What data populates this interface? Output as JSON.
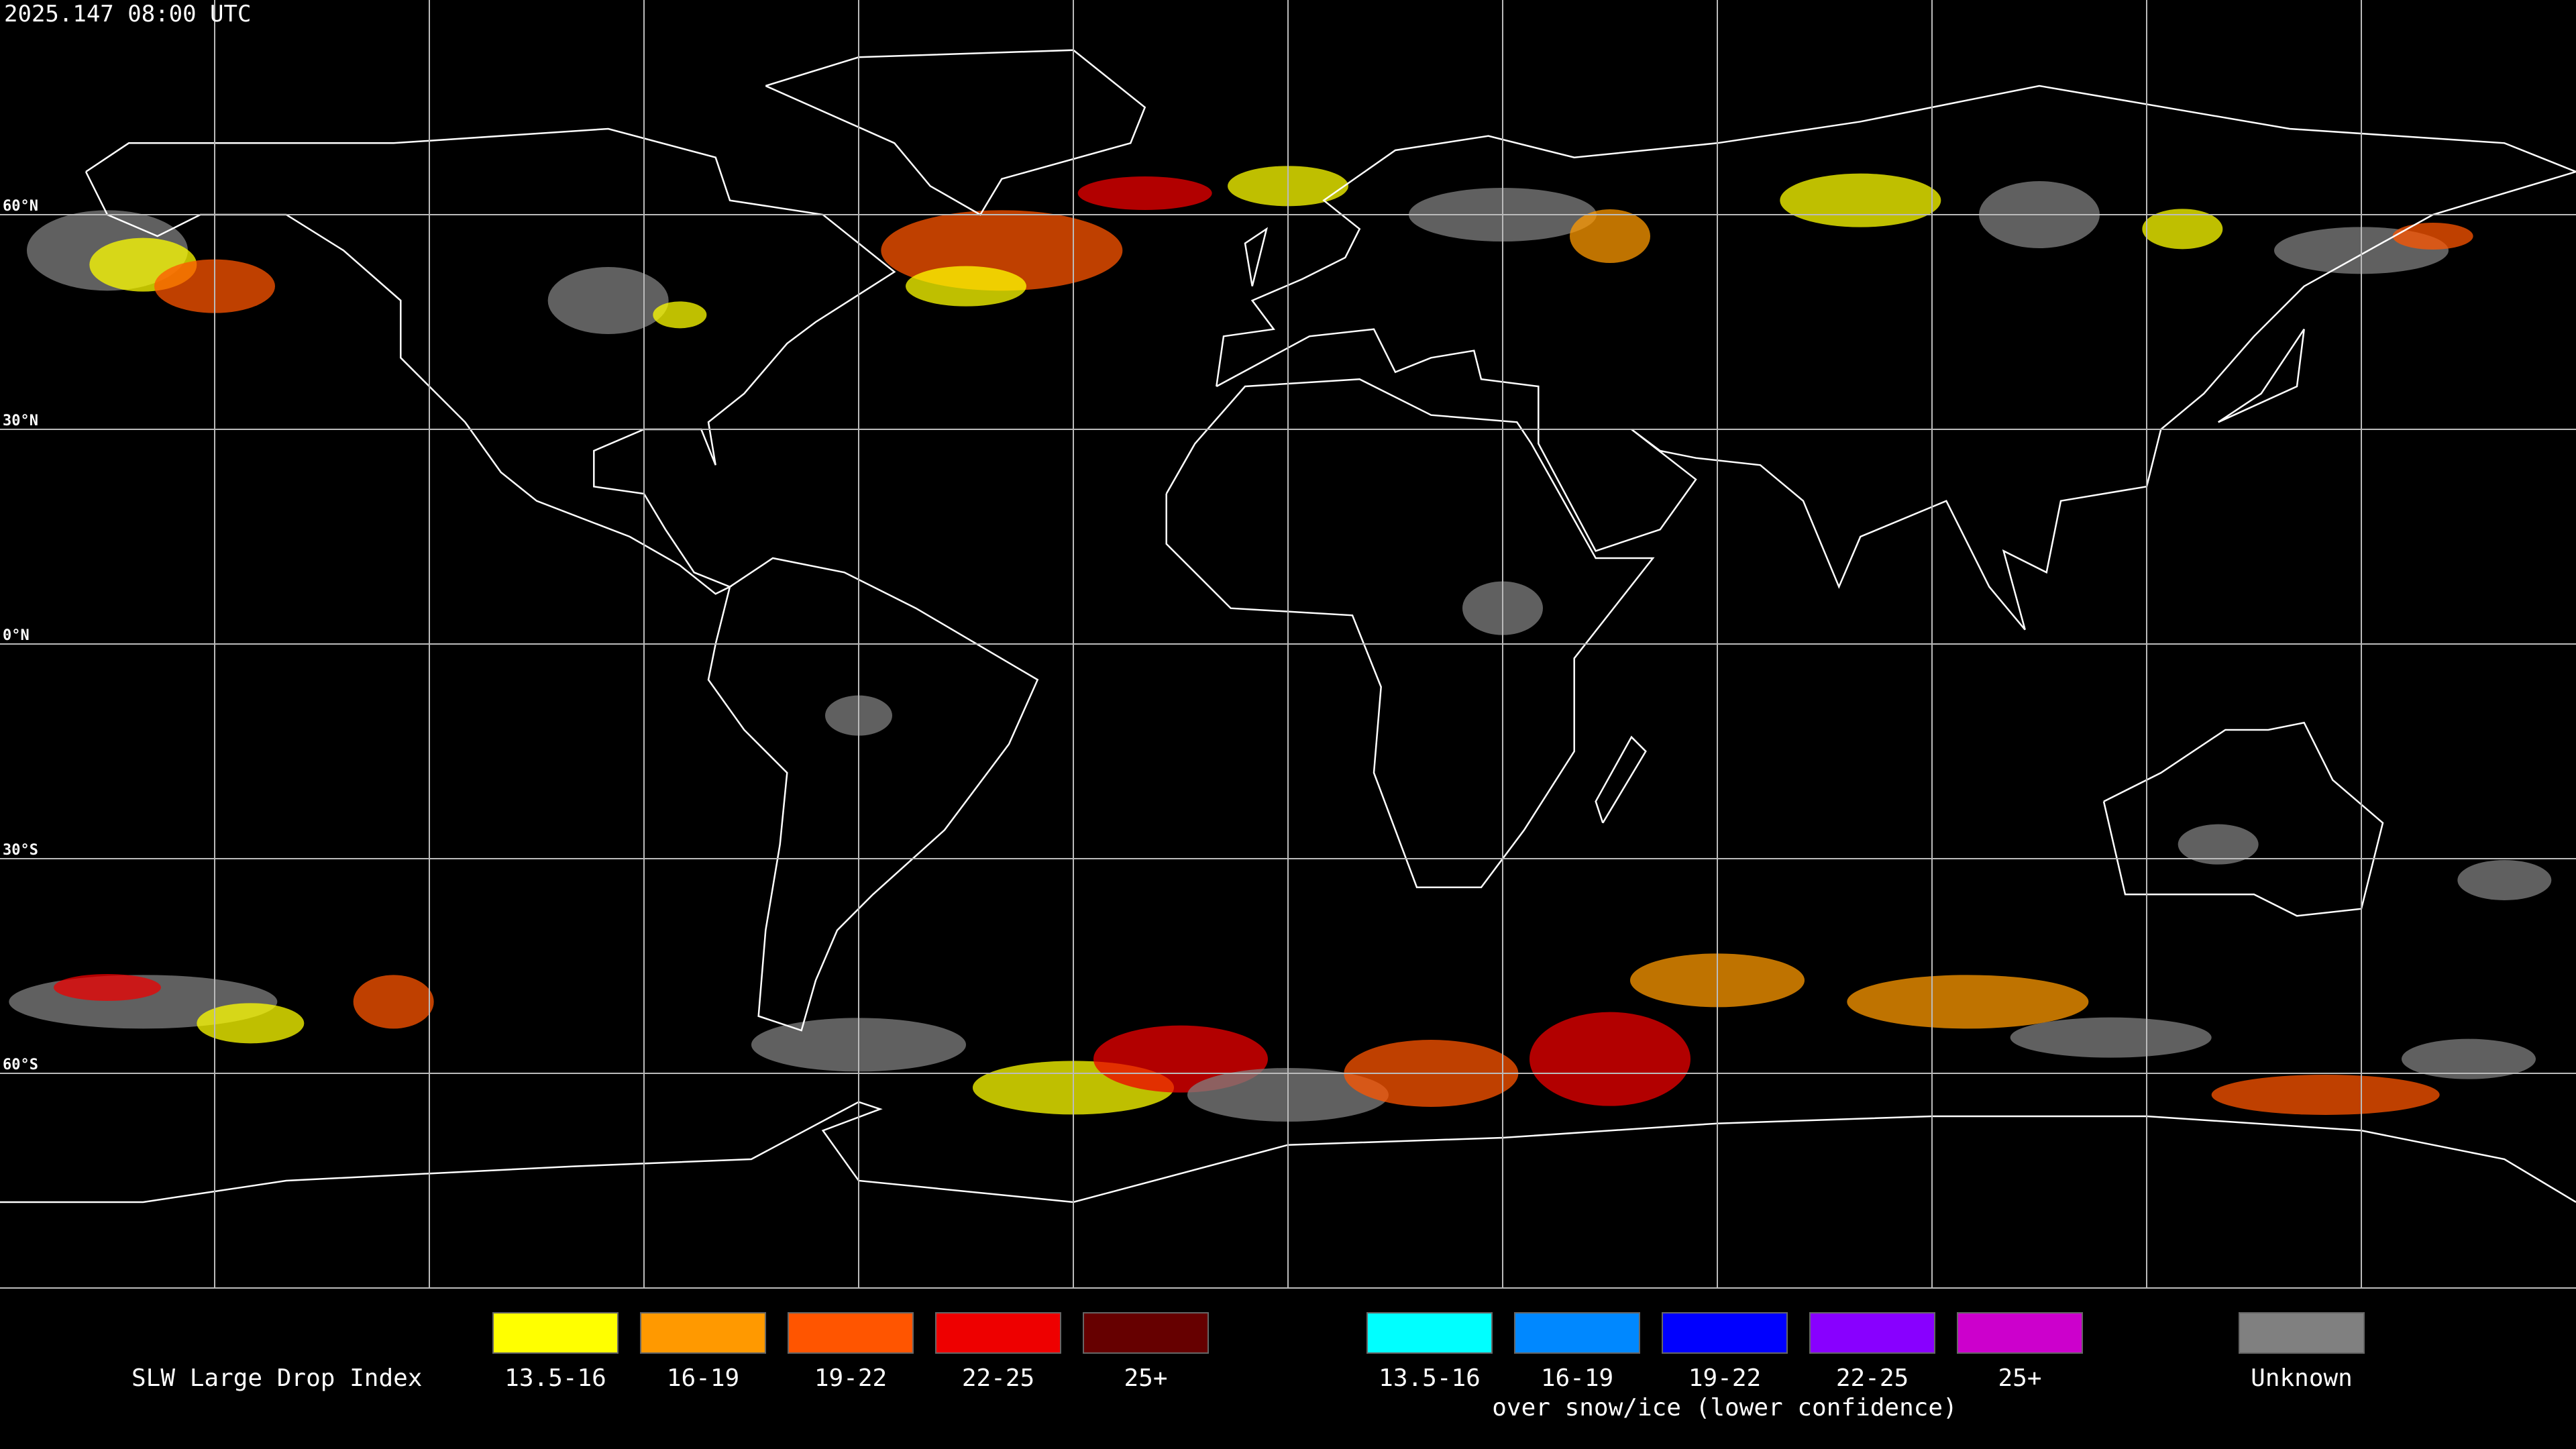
{
  "header": {
    "title": "2025.147 08:00 UTC"
  },
  "map": {
    "lat_labels": [
      "60°N",
      "30°N",
      "0°N",
      "30°S",
      "60°S"
    ]
  },
  "legend": {
    "title": "SLW Large Drop Index",
    "groups": [
      {
        "items": [
          {
            "label": "13.5-16",
            "color": "#ffff00"
          },
          {
            "label": "16-19",
            "color": "#ff9900"
          },
          {
            "label": "19-22",
            "color": "#ff5500"
          },
          {
            "label": "22-25",
            "color": "#ee0000"
          },
          {
            "label": "25+",
            "color": "#660000"
          }
        ]
      },
      {
        "items": [
          {
            "label": "13.5-16",
            "color": "#00ffff"
          },
          {
            "label": "16-19",
            "color": "#0088ff"
          },
          {
            "label": "19-22",
            "color": "#0000ff"
          },
          {
            "label": "22-25",
            "color": "#8800ff"
          },
          {
            "label": "25+",
            "color": "#cc00cc"
          }
        ],
        "note": "over snow/ice (lower confidence)"
      }
    ],
    "unknown": {
      "label": "Unknown",
      "color": "#808080"
    }
  }
}
